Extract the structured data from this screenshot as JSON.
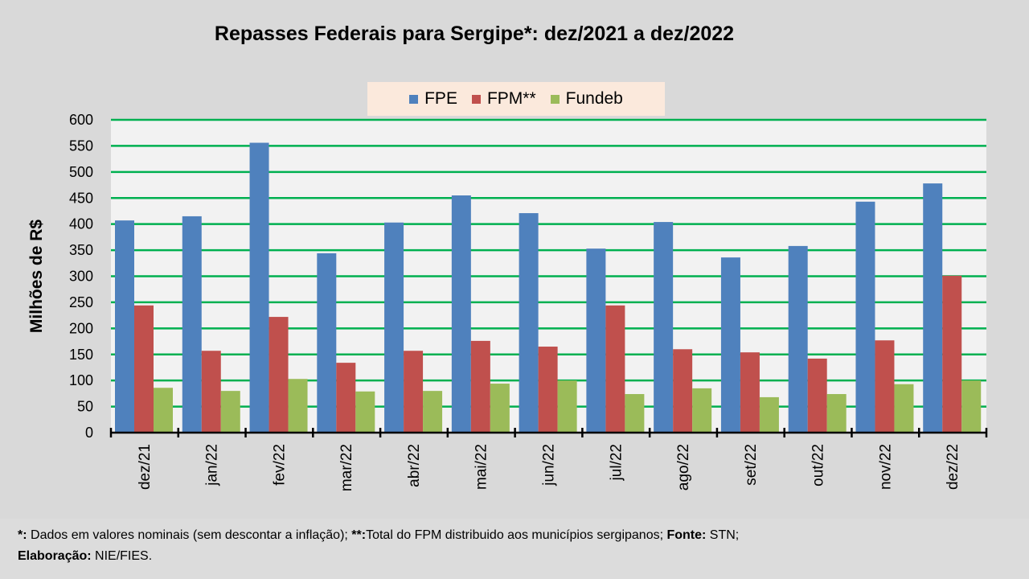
{
  "chart_data": {
    "type": "bar",
    "title": "Repasses Federais para Sergipe*: dez/2021 a dez/2022",
    "xlabel": "",
    "ylabel": "Milhões de R$",
    "ylim": [
      0,
      600
    ],
    "yticks": [
      0,
      50,
      100,
      150,
      200,
      250,
      300,
      350,
      400,
      450,
      500,
      550,
      600
    ],
    "grid": true,
    "legend_position": "top-center",
    "categories": [
      "dez/21",
      "jan/22",
      "fev/22",
      "mar/22",
      "abr/22",
      "mai/22",
      "jun/22",
      "jul/22",
      "ago/22",
      "set/22",
      "out/22",
      "nov/22",
      "dez/22"
    ],
    "series": [
      {
        "name": "FPE",
        "color": "#4f81bd",
        "values": [
          407,
          415,
          556,
          344,
          403,
          455,
          421,
          353,
          404,
          336,
          358,
          443,
          478
        ]
      },
      {
        "name": "FPM**",
        "color": "#c0504d",
        "values": [
          244,
          157,
          222,
          134,
          157,
          176,
          165,
          244,
          160,
          154,
          142,
          177,
          301
        ]
      },
      {
        "name": "Fundeb",
        "color": "#9bbb59",
        "values": [
          86,
          80,
          103,
          79,
          80,
          94,
          100,
          74,
          85,
          68,
          74,
          93,
          100
        ]
      }
    ]
  },
  "footer": {
    "line1_b1": "*:",
    "line1_t1": " Dados em valores nominais (sem descontar a inflação); ",
    "line1_b2": "**:",
    "line1_t2": "Total  do FPM distribuido aos municípios sergipanos; ",
    "line1_b3": "Fonte:",
    "line1_t3": " STN;",
    "line2_b1": "Elaboração:",
    "line2_t1": " NIE/FIES."
  },
  "colors": {
    "grid": "#00b050",
    "plot_bg": "#f2f2f2"
  }
}
